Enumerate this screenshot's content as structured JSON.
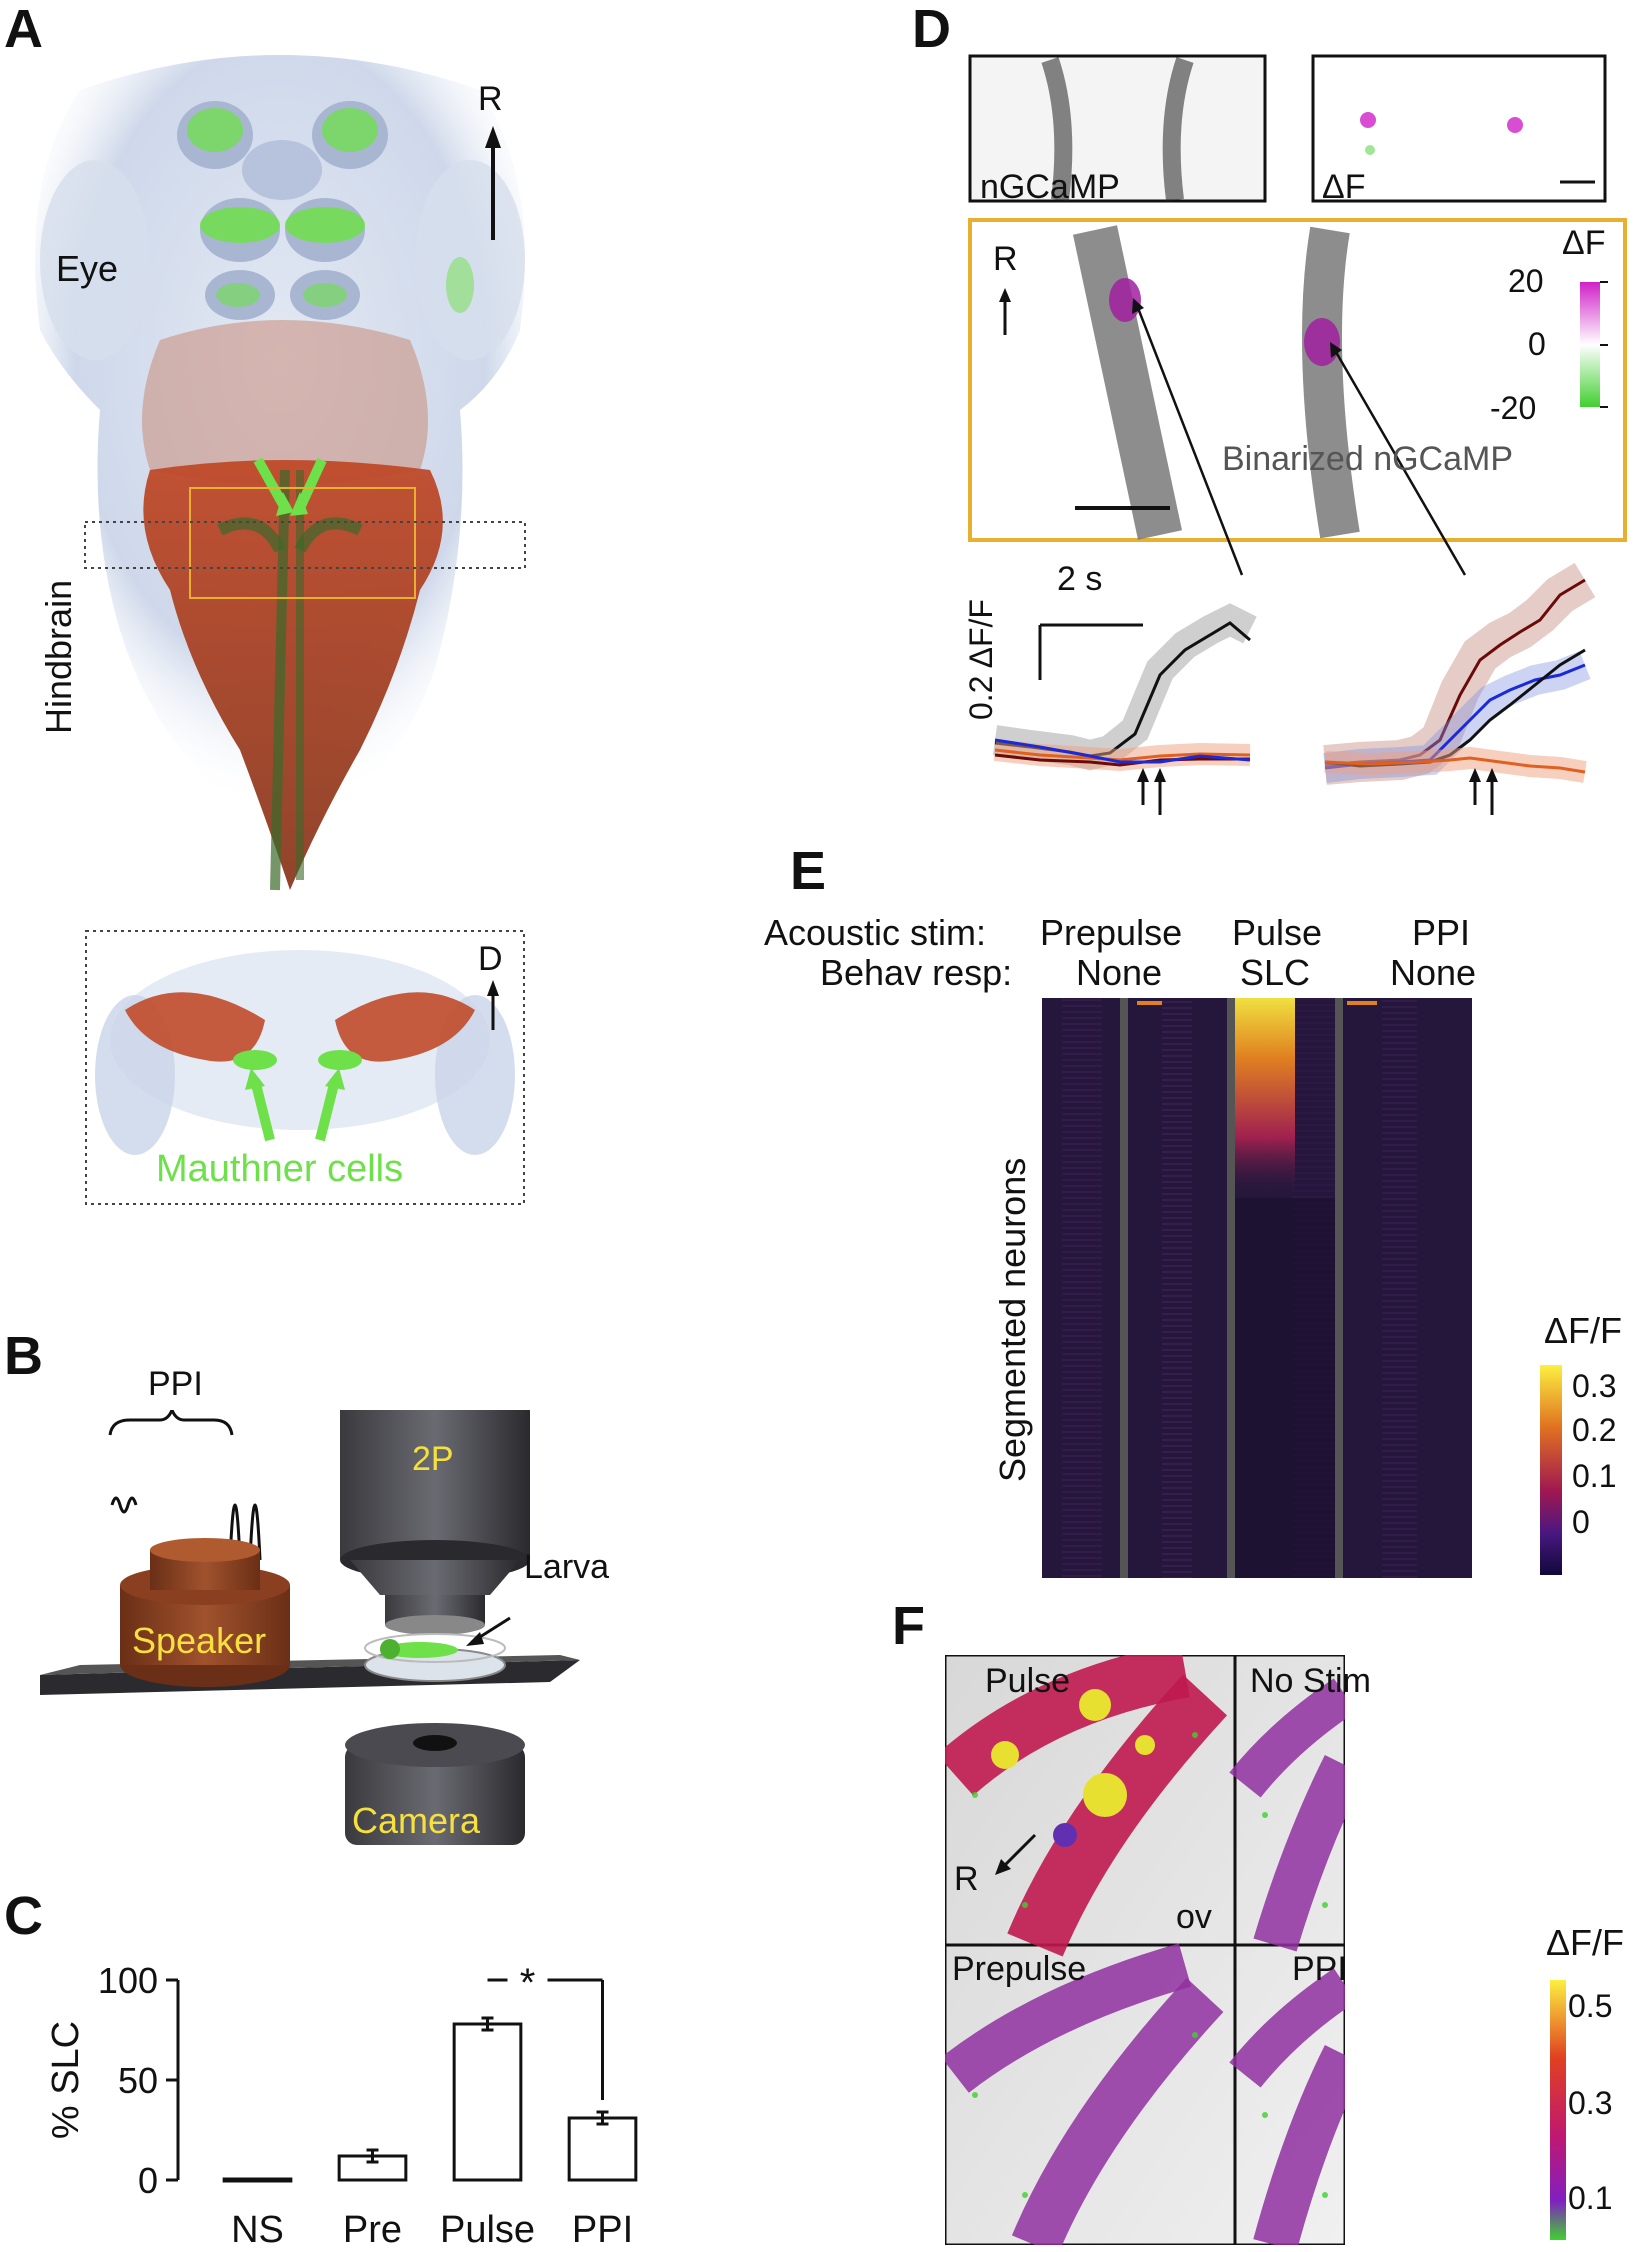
{
  "panels": {
    "A": {
      "label": "A",
      "rostral": "R",
      "eye": "Eye",
      "hindbrain": "Hindbrain",
      "dorsal": "D",
      "mauthner": "Mauthner cells"
    },
    "B": {
      "label": "B",
      "ppi": "PPI",
      "objective": "2P",
      "larva": "Larva",
      "speaker": "Speaker",
      "camera": "Camera"
    },
    "C": {
      "label": "C",
      "significance": "*"
    },
    "D": {
      "label": "D",
      "img1": "nGCaMP",
      "img2": "ΔF",
      "rostral": "R",
      "cbar_title": "ΔF",
      "cbar_ticks": [
        "20",
        "0",
        "-20"
      ],
      "binarized": "Binarized nGCaMP",
      "time_scale": "2 s",
      "amp_scale": "0.2 ΔF/F"
    },
    "E": {
      "label": "E",
      "stim_header": "Acoustic stim:",
      "resp_header": "Behav resp:",
      "columns": [
        {
          "stim": "Prepulse",
          "resp": "None"
        },
        {
          "stim": "Pulse",
          "resp": "SLC"
        },
        {
          "stim": "PPI",
          "resp": "None"
        }
      ],
      "ylabel": "Segmented neurons",
      "cbar_title": "ΔF/F",
      "cbar_ticks": [
        "0.3",
        "0.2",
        "0.1",
        "0"
      ]
    },
    "F": {
      "label": "F",
      "tiles": [
        "Pulse",
        "No Stim",
        "Prepulse",
        "PPI"
      ],
      "rostral": "R",
      "ov": "ov",
      "cbar_title": "ΔF/F",
      "cbar_ticks": [
        "0.5",
        "0.3",
        "0.1"
      ]
    }
  },
  "colors": {
    "tissue": "#c04a2a",
    "mauthner": "#6ee04a",
    "box_orange": "#e8b030",
    "magenta": "#d020c8",
    "green": "#40d030",
    "trace_black": "#111111",
    "trace_blue": "#1a2ad8",
    "trace_darkred": "#6a0a0a",
    "trace_orange": "#e06020"
  },
  "chart_data": {
    "type": "bar",
    "categories": [
      "NS",
      "Pre",
      "Pulse",
      "PPI"
    ],
    "values": [
      0.5,
      12,
      78,
      31
    ],
    "errors": [
      0.5,
      3,
      3,
      3
    ],
    "ylabel": "% SLC",
    "yticks": [
      0,
      50,
      100
    ],
    "ylim": [
      0,
      100
    ]
  }
}
